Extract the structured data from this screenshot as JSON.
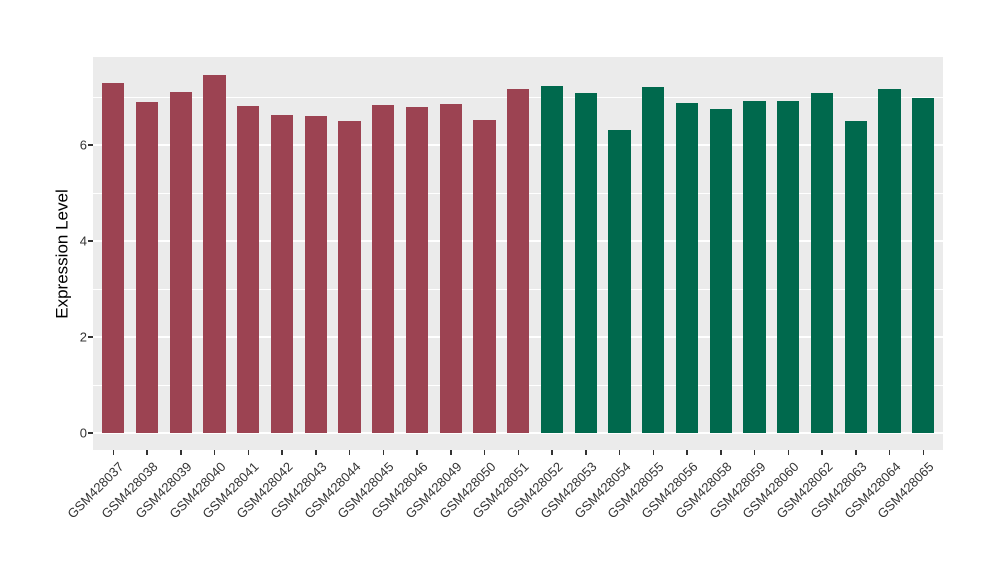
{
  "figure": {
    "background": "#FFFFFF"
  },
  "chart_data": {
    "type": "bar",
    "title": "",
    "xlabel": "",
    "ylabel": "Expression Level",
    "ylim": [
      0,
      7.85
    ],
    "yticks": [
      0,
      2,
      4,
      6
    ],
    "ytick_labels": [
      "0",
      "2",
      "4",
      "6"
    ],
    "minor_gridlines": [
      1,
      3,
      5,
      7
    ],
    "grid": true,
    "legend_position": "none",
    "panel_background": "#EBEBEB",
    "gridline_color": "#FFFFFF",
    "axis_text_color": "#333333",
    "categories": [
      "GSM428037",
      "GSM428038",
      "GSM428039",
      "GSM428040",
      "GSM428041",
      "GSM428042",
      "GSM428043",
      "GSM428044",
      "GSM428045",
      "GSM428046",
      "GSM428049",
      "GSM428050",
      "GSM428051",
      "GSM428052",
      "GSM428053",
      "GSM428054",
      "GSM428055",
      "GSM428056",
      "GSM428058",
      "GSM428059",
      "GSM428060",
      "GSM428062",
      "GSM428063",
      "GSM428064",
      "GSM428065"
    ],
    "values": [
      7.3,
      6.9,
      7.11,
      7.46,
      6.82,
      6.63,
      6.61,
      6.5,
      6.84,
      6.8,
      6.86,
      6.52,
      7.16,
      7.22,
      7.09,
      6.31,
      7.2,
      6.88,
      6.76,
      6.91,
      6.91,
      7.09,
      6.5,
      7.16,
      6.98
    ],
    "groups": [
      0,
      0,
      0,
      0,
      0,
      0,
      0,
      0,
      0,
      0,
      0,
      0,
      0,
      1,
      1,
      1,
      1,
      1,
      1,
      1,
      1,
      1,
      1,
      1,
      1
    ],
    "group_colors": [
      "#9C4352",
      "#00694D"
    ]
  }
}
